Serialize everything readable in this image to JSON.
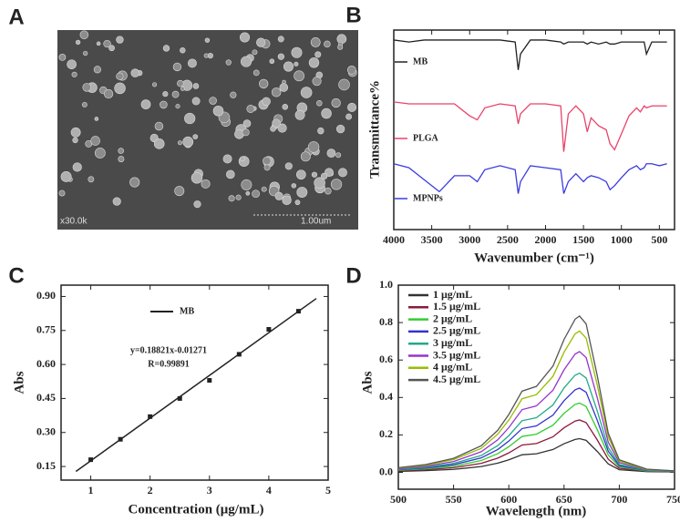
{
  "chart_data": [
    {
      "type": "image",
      "panel_label": "A",
      "annotations": [
        "x30.0k",
        "1.00um"
      ]
    },
    {
      "type": "line",
      "panel_label": "B",
      "xlabel": "Wavenumber (cm⁻¹)",
      "ylabel": "Transmittance%",
      "xlim": [
        4000,
        300
      ],
      "xticks": [
        4000,
        3500,
        3000,
        2500,
        2000,
        1500,
        1000,
        500
      ],
      "ylim": [
        0,
        100
      ],
      "x": [
        4000,
        3800,
        3600,
        3400,
        3200,
        3000,
        2900,
        2800,
        2600,
        2400,
        2360,
        2330,
        2200,
        2000,
        1800,
        1760,
        1700,
        1600,
        1500,
        1450,
        1400,
        1300,
        1200,
        1150,
        1090,
        1000,
        900,
        800,
        750,
        700,
        670,
        600,
        500,
        400
      ],
      "series": [
        {
          "name": "MB",
          "color": "#222222",
          "values": [
            95,
            94,
            95,
            95,
            95,
            95,
            95,
            95,
            95,
            94,
            80,
            88,
            95,
            95,
            94,
            93,
            94,
            94,
            94,
            93,
            94,
            93,
            94,
            93,
            93,
            94,
            94,
            94,
            94,
            94,
            88,
            94,
            94,
            94
          ]
        },
        {
          "name": "PLGA",
          "color": "#e8436a",
          "values": [
            64,
            63,
            63,
            63,
            63,
            57,
            55,
            61,
            63,
            62,
            53,
            58,
            63,
            63,
            62,
            39,
            58,
            62,
            58,
            49,
            56,
            52,
            50,
            43,
            40,
            48,
            57,
            61,
            59,
            62,
            61,
            62,
            62,
            62
          ]
        },
        {
          "name": "MPNPs",
          "color": "#3b3be0",
          "values": [
            33,
            31,
            25,
            19,
            27,
            27,
            24,
            30,
            32,
            30,
            18,
            24,
            32,
            31,
            30,
            18,
            24,
            28,
            24,
            26,
            27,
            26,
            24,
            20,
            22,
            26,
            30,
            32,
            30,
            31,
            33,
            33,
            32,
            33
          ]
        }
      ]
    },
    {
      "type": "scatter",
      "panel_label": "C",
      "xlabel": "Concentration (μg/mL)",
      "ylabel": "Abs",
      "xlim": [
        0.5,
        5
      ],
      "xticks": [
        1,
        2,
        3,
        4,
        5
      ],
      "ylim": [
        0.09,
        0.95
      ],
      "yticks": [
        {
          "value": 0.15,
          "label": "0.15"
        },
        {
          "value": 0.3,
          "label": "0.30"
        },
        {
          "value": 0.45,
          "label": "0.45"
        },
        {
          "value": 0.6,
          "label": "0.60"
        },
        {
          "value": 0.75,
          "label": "0.75"
        },
        {
          "value": 0.9,
          "label": "0.90"
        }
      ],
      "series": [
        {
          "name": "MB",
          "color": "#222222",
          "x": [
            1,
            1.5,
            2,
            2.5,
            3,
            3.5,
            4,
            4.5
          ],
          "values": [
            0.18,
            0.27,
            0.37,
            0.45,
            0.53,
            0.645,
            0.755,
            0.835
          ]
        }
      ],
      "fit": {
        "x": [
          0.75,
          4.8
        ],
        "values": [
          0.128,
          0.891
        ]
      },
      "annotations": [
        "y=0.18821x-0.01271",
        "R=0.99891"
      ]
    },
    {
      "type": "line",
      "panel_label": "D",
      "xlabel": "Wavelength (nm)",
      "ylabel": "Abs",
      "xlim": [
        500,
        750
      ],
      "xticks": [
        500,
        550,
        600,
        650,
        700,
        750
      ],
      "ylim": [
        -0.09,
        1.0
      ],
      "yticks": [
        {
          "value": 0,
          "label": "0.0"
        },
        0.2,
        0.4,
        0.6,
        0.8,
        {
          "value": 1,
          "label": "1.0"
        }
      ],
      "x": [
        500,
        525,
        550,
        575,
        590,
        600,
        612,
        625,
        640,
        650,
        660,
        664,
        670,
        680,
        690,
        700,
        725,
        750
      ],
      "series": [
        {
          "name": "1 μg/mL",
          "color": "#333333",
          "values": [
            0.005,
            0.009,
            0.016,
            0.031,
            0.049,
            0.067,
            0.094,
            0.099,
            0.122,
            0.153,
            0.176,
            0.18,
            0.171,
            0.112,
            0.045,
            0.014,
            0.004,
            0.002
          ]
        },
        {
          "name": "1.5 μg/mL",
          "color": "#8b1a3b",
          "values": [
            0.008,
            0.014,
            0.025,
            0.048,
            0.076,
            0.104,
            0.146,
            0.154,
            0.19,
            0.238,
            0.274,
            0.28,
            0.266,
            0.174,
            0.07,
            0.022,
            0.006,
            0.003
          ]
        },
        {
          "name": "2 μg/mL",
          "color": "#33cc33",
          "values": [
            0.011,
            0.019,
            0.033,
            0.063,
            0.1,
            0.137,
            0.192,
            0.204,
            0.252,
            0.315,
            0.363,
            0.37,
            0.352,
            0.229,
            0.093,
            0.03,
            0.007,
            0.004
          ]
        },
        {
          "name": "2.5 μg/mL",
          "color": "#3333cc",
          "values": [
            0.014,
            0.023,
            0.041,
            0.077,
            0.122,
            0.167,
            0.234,
            0.248,
            0.306,
            0.383,
            0.441,
            0.45,
            0.428,
            0.279,
            0.113,
            0.036,
            0.009,
            0.005
          ]
        },
        {
          "name": "3 μg/mL",
          "color": "#22aa88",
          "values": [
            0.016,
            0.027,
            0.048,
            0.09,
            0.143,
            0.196,
            0.276,
            0.292,
            0.36,
            0.451,
            0.519,
            0.53,
            0.504,
            0.329,
            0.133,
            0.042,
            0.011,
            0.005
          ]
        },
        {
          "name": "3.5 μg/mL",
          "color": "#9933cc",
          "values": [
            0.019,
            0.032,
            0.058,
            0.11,
            0.174,
            0.239,
            0.335,
            0.355,
            0.439,
            0.548,
            0.632,
            0.645,
            0.613,
            0.4,
            0.161,
            0.052,
            0.013,
            0.006
          ]
        },
        {
          "name": "4 μg/mL",
          "color": "#99bb00",
          "values": [
            0.023,
            0.038,
            0.068,
            0.128,
            0.204,
            0.279,
            0.393,
            0.415,
            0.513,
            0.642,
            0.74,
            0.755,
            0.717,
            0.468,
            0.189,
            0.06,
            0.015,
            0.008
          ]
        },
        {
          "name": "4.5 μg/mL",
          "color": "#555555",
          "values": [
            0.025,
            0.042,
            0.075,
            0.142,
            0.225,
            0.309,
            0.434,
            0.459,
            0.568,
            0.71,
            0.818,
            0.835,
            0.793,
            0.518,
            0.209,
            0.067,
            0.017,
            0.008
          ]
        }
      ]
    }
  ]
}
